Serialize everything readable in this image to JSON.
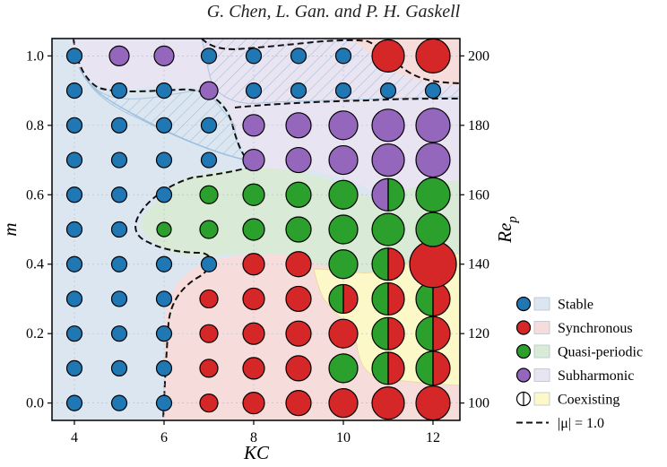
{
  "header": {
    "text": "G. Chen, L. Gan. and P. H. Gaskell"
  },
  "colors": {
    "stable": "#1f77b4",
    "synchronous": "#d62728",
    "quasi": "#2ca02c",
    "subharmonic": "#9467bd",
    "stable_region": "#dce6f0",
    "sync_region": "#f7dcdc",
    "quasi_region": "#d9ebd6",
    "sub_region": "#e9e4f2",
    "coexist_region": "#fcf8c8",
    "hatch": "#9cb8d8"
  },
  "chart_data": {
    "type": "scatter",
    "xlabel": "KC",
    "ylabel": "m",
    "y2label": "Re_p",
    "xlim": [
      3.5,
      12.6
    ],
    "ylim": [
      -0.05,
      1.05
    ],
    "y2lim": [
      95,
      205
    ],
    "xticks": [
      "4",
      "6",
      "8",
      "10",
      "12"
    ],
    "yticks": [
      "0.0",
      "0.2",
      "0.4",
      "0.6",
      "0.8",
      "1.0"
    ],
    "y2ticks": [
      "100",
      "120",
      "140",
      "160",
      "180",
      "200"
    ],
    "grid": true,
    "legend_position": "right",
    "legend": [
      {
        "label": "Stable",
        "state": "S"
      },
      {
        "label": "Synchronous",
        "state": "Y"
      },
      {
        "label": "Quasi-periodic",
        "state": "Q"
      },
      {
        "label": "Subharmonic",
        "state": "H"
      },
      {
        "label": "Coexisting",
        "state": "C"
      },
      {
        "label": "|μ| = 1.0",
        "state": "L"
      }
    ],
    "state_codes": {
      "S": "Stable",
      "Y": "Synchronous",
      "Q": "Quasi-periodic",
      "H": "Subharmonic",
      "SY": "Synchronous/Quasi-periodic coexisting"
    },
    "kc_values": [
      4,
      5,
      6,
      7,
      8,
      9,
      10,
      11,
      12
    ],
    "m_values": [
      0.0,
      0.1,
      0.2,
      0.3,
      0.4,
      0.5,
      0.6,
      0.7,
      0.8,
      0.9,
      1.0
    ],
    "states": [
      [
        "S",
        "S",
        "S",
        "Y",
        "Y",
        "Y",
        "Y",
        "Y",
        "Y"
      ],
      [
        "S",
        "S",
        "S",
        "Y",
        "Y",
        "Y",
        "Q",
        "QY",
        "QY"
      ],
      [
        "S",
        "S",
        "S",
        "Y",
        "Y",
        "Y",
        "Y",
        "QY",
        "QY"
      ],
      [
        "S",
        "S",
        "S",
        "Y",
        "Y",
        "Y",
        "QY",
        "QY",
        "QY"
      ],
      [
        "S",
        "S",
        "S",
        "S",
        "Y",
        "Y",
        "Q",
        "QY",
        "Y"
      ],
      [
        "S",
        "S",
        "Q",
        "Q",
        "Q",
        "Q",
        "Q",
        "Q",
        "Q"
      ],
      [
        "S",
        "S",
        "S",
        "Q",
        "Q",
        "Q",
        "Q",
        "HQ",
        "Q"
      ],
      [
        "S",
        "S",
        "S",
        "S",
        "H",
        "H",
        "H",
        "H",
        "H"
      ],
      [
        "S",
        "S",
        "S",
        "S",
        "H",
        "H",
        "H",
        "H",
        "H"
      ],
      [
        "S",
        "S",
        "S",
        "H",
        "S",
        "S",
        "S",
        "S",
        "S"
      ],
      [
        "S",
        "H",
        "H",
        "S",
        "S",
        "S",
        "S",
        "Y",
        "Y"
      ]
    ]
  }
}
